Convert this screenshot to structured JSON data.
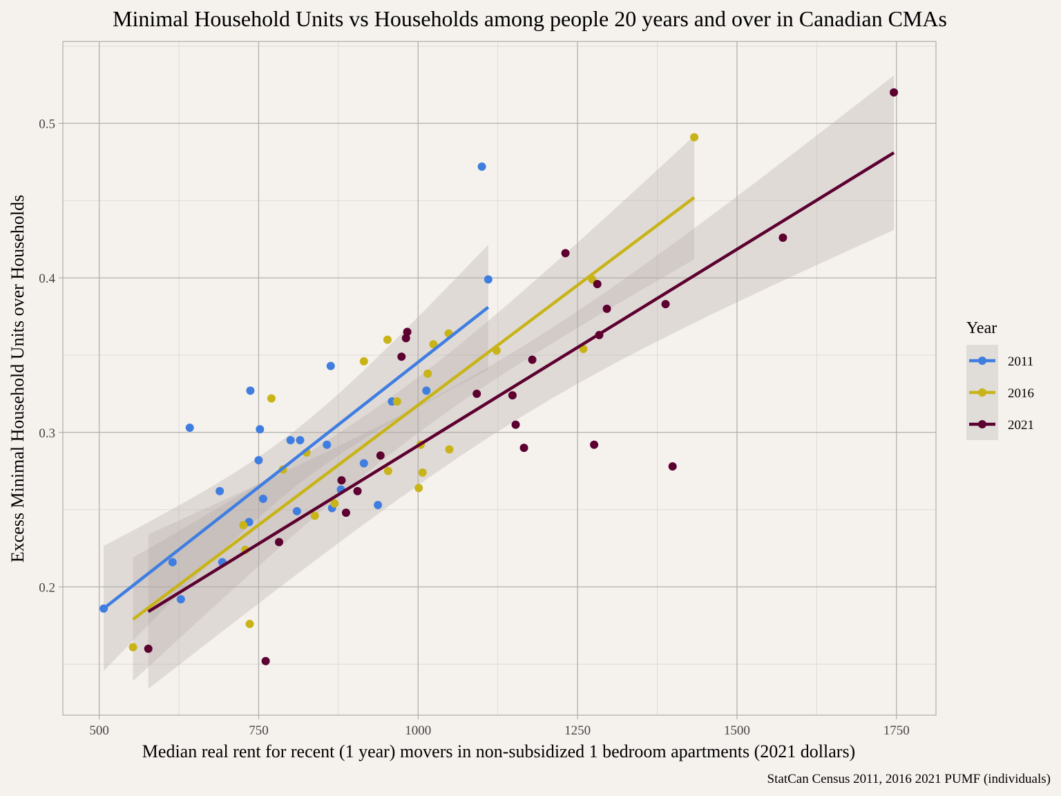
{
  "chart_data": {
    "type": "scatter",
    "title": "Minimal Household Units vs Households among people 20 years and over in Canadian CMAs",
    "xlabel": "Median real rent for recent (1 year) movers in non-subsidized 1 bedroom apartments (2021 dollars)",
    "ylabel": "Excess Minimal Household Units over Households",
    "caption": "StatCan Census 2011, 2016 2021 PUMF (individuals)",
    "xlim": [
      443,
      1812
    ],
    "ylim": [
      0.117,
      0.553
    ],
    "x_ticks": [
      500,
      750,
      1000,
      1250,
      1500,
      1750
    ],
    "x_tick_labels": [
      "500",
      "750",
      "1000",
      "1250",
      "1500",
      "1750"
    ],
    "y_ticks": [
      0.2,
      0.3,
      0.4,
      0.5
    ],
    "y_tick_labels": [
      "0.2",
      "0.3",
      "0.4",
      "0.5"
    ],
    "grid": true,
    "legend": {
      "title": "Year",
      "position": "right",
      "entries": [
        "2011",
        "2016",
        "2021"
      ]
    },
    "series": [
      {
        "name": "2011",
        "color": "#3f7ee0",
        "points": [
          [
            507,
            0.186
          ],
          [
            615,
            0.216
          ],
          [
            628,
            0.192
          ],
          [
            642,
            0.303
          ],
          [
            689,
            0.262
          ],
          [
            693,
            0.216
          ],
          [
            735,
            0.242
          ],
          [
            737,
            0.327
          ],
          [
            750,
            0.282
          ],
          [
            752,
            0.302
          ],
          [
            757,
            0.257
          ],
          [
            800,
            0.295
          ],
          [
            810,
            0.249
          ],
          [
            815,
            0.295
          ],
          [
            857,
            0.292
          ],
          [
            863,
            0.343
          ],
          [
            865,
            0.251
          ],
          [
            879,
            0.263
          ],
          [
            915,
            0.28
          ],
          [
            937,
            0.253
          ],
          [
            959,
            0.32
          ],
          [
            1013,
            0.327
          ],
          [
            1100,
            0.472
          ],
          [
            1110,
            0.399
          ]
        ],
        "fit": {
          "x": [
            507,
            1110
          ],
          "y": [
            0.186,
            0.381
          ],
          "ci_low": [
            0.146,
            0.342
          ],
          "ci_high": [
            0.227,
            0.421
          ]
        }
      },
      {
        "name": "2016",
        "color": "#c8b418",
        "points": [
          [
            553,
            0.161
          ],
          [
            726,
            0.24
          ],
          [
            729,
            0.224
          ],
          [
            736,
            0.176
          ],
          [
            770,
            0.322
          ],
          [
            788,
            0.276
          ],
          [
            825,
            0.287
          ],
          [
            838,
            0.246
          ],
          [
            869,
            0.254
          ],
          [
            915,
            0.346
          ],
          [
            952,
            0.36
          ],
          [
            953,
            0.275
          ],
          [
            967,
            0.32
          ],
          [
            1001,
            0.264
          ],
          [
            1004,
            0.292
          ],
          [
            1007,
            0.274
          ],
          [
            1015,
            0.338
          ],
          [
            1024,
            0.357
          ],
          [
            1048,
            0.364
          ],
          [
            1049,
            0.289
          ],
          [
            1123,
            0.353
          ],
          [
            1259,
            0.354
          ],
          [
            1273,
            0.399
          ],
          [
            1433,
            0.491
          ]
        ],
        "fit": {
          "x": [
            553,
            1433
          ],
          "y": [
            0.179,
            0.452
          ],
          "ci_low": [
            0.142,
            0.409
          ],
          "ci_high": [
            0.216,
            0.495
          ]
        }
      },
      {
        "name": "2021",
        "color": "#5c0030",
        "points": [
          [
            577,
            0.16
          ],
          [
            761,
            0.152
          ],
          [
            782,
            0.229
          ],
          [
            880,
            0.269
          ],
          [
            887,
            0.248
          ],
          [
            905,
            0.262
          ],
          [
            941,
            0.285
          ],
          [
            974,
            0.349
          ],
          [
            981,
            0.361
          ],
          [
            983,
            0.365
          ],
          [
            1092,
            0.325
          ],
          [
            1148,
            0.324
          ],
          [
            1153,
            0.305
          ],
          [
            1166,
            0.29
          ],
          [
            1179,
            0.347
          ],
          [
            1231,
            0.416
          ],
          [
            1276,
            0.292
          ],
          [
            1281,
            0.396
          ],
          [
            1284,
            0.363
          ],
          [
            1296,
            0.38
          ],
          [
            1388,
            0.383
          ],
          [
            1399,
            0.278
          ],
          [
            1572,
            0.426
          ],
          [
            1746,
            0.52
          ]
        ],
        "fit": {
          "x": [
            577,
            1746
          ],
          "y": [
            0.184,
            0.481
          ],
          "ci_low": [
            0.137,
            0.429
          ],
          "ci_high": [
            0.231,
            0.534
          ]
        }
      }
    ]
  }
}
